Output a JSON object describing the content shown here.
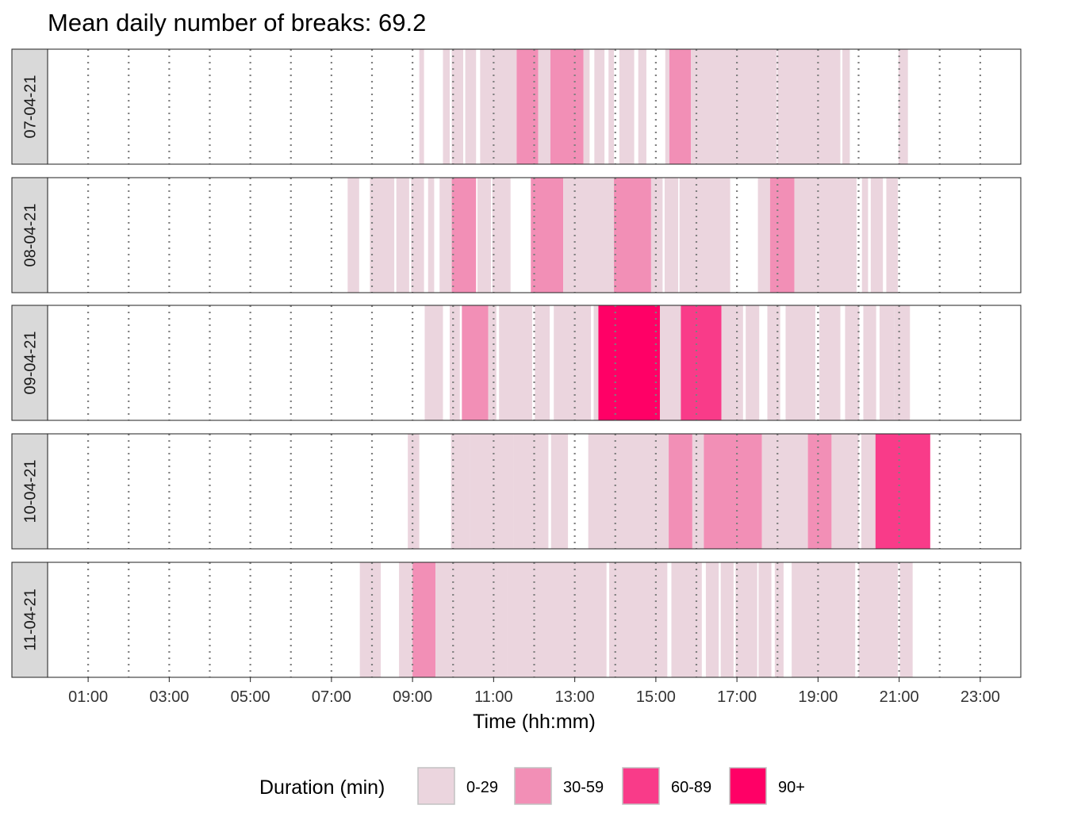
{
  "chart_data": {
    "type": "timeline",
    "title": "Mean daily number of breaks: 69.2",
    "xlabel": "Time (hh:mm)",
    "xlim_hours": [
      0,
      24
    ],
    "x_ticks": [
      "01:00",
      "03:00",
      "05:00",
      "07:00",
      "09:00",
      "11:00",
      "13:00",
      "15:00",
      "17:00",
      "19:00",
      "21:00",
      "23:00"
    ],
    "x_tick_hours": [
      1,
      3,
      5,
      7,
      9,
      11,
      13,
      15,
      17,
      19,
      21,
      23
    ],
    "gridlines_dotted_hours": [
      1,
      2,
      3,
      4,
      5,
      6,
      7,
      8,
      9,
      10,
      11,
      12,
      13,
      14,
      15,
      16,
      17,
      18,
      19,
      20,
      21,
      22,
      23
    ],
    "legend": {
      "title": "Duration (min)",
      "placement": "bottom",
      "categories": [
        {
          "label": "0-29",
          "color": "#ebd5de"
        },
        {
          "label": "30-59",
          "color": "#f28fb6"
        },
        {
          "label": "60-89",
          "color": "#f93b89"
        },
        {
          "label": "90+",
          "color": "#ff0066"
        }
      ]
    },
    "panels": [
      {
        "label": "07-04-21",
        "breaks": [
          {
            "start": "09:10",
            "end": "09:17",
            "category": "0-29"
          },
          {
            "start": "09:45",
            "end": "09:55",
            "category": "0-29"
          },
          {
            "start": "09:58",
            "end": "10:15",
            "category": "0-29"
          },
          {
            "start": "10:18",
            "end": "10:34",
            "category": "0-29"
          },
          {
            "start": "10:40",
            "end": "11:34",
            "category": "0-29"
          },
          {
            "start": "11:34",
            "end": "12:06",
            "category": "30-59"
          },
          {
            "start": "12:06",
            "end": "12:24",
            "category": "0-29"
          },
          {
            "start": "12:24",
            "end": "13:13",
            "category": "30-59"
          },
          {
            "start": "13:13",
            "end": "13:22",
            "category": "0-29"
          },
          {
            "start": "13:29",
            "end": "13:44",
            "category": "0-29"
          },
          {
            "start": "13:50",
            "end": "13:58",
            "category": "0-29"
          },
          {
            "start": "14:06",
            "end": "14:28",
            "category": "0-29"
          },
          {
            "start": "14:34",
            "end": "14:46",
            "category": "0-29"
          },
          {
            "start": "15:14",
            "end": "15:20",
            "category": "0-29"
          },
          {
            "start": "15:20",
            "end": "15:52",
            "category": "30-59"
          },
          {
            "start": "15:52",
            "end": "17:59",
            "category": "0-29"
          },
          {
            "start": "18:00",
            "end": "19:33",
            "category": "0-29"
          },
          {
            "start": "19:36",
            "end": "19:47",
            "category": "0-29"
          },
          {
            "start": "20:59",
            "end": "21:13",
            "category": "0-29"
          }
        ]
      },
      {
        "label": "08-04-21",
        "breaks": [
          {
            "start": "07:24",
            "end": "07:41",
            "category": "0-29"
          },
          {
            "start": "07:57",
            "end": "08:33",
            "category": "0-29"
          },
          {
            "start": "08:36",
            "end": "08:55",
            "category": "0-29"
          },
          {
            "start": "08:58",
            "end": "09:17",
            "category": "0-29"
          },
          {
            "start": "09:23",
            "end": "09:32",
            "category": "0-29"
          },
          {
            "start": "09:40",
            "end": "09:58",
            "category": "0-29"
          },
          {
            "start": "09:58",
            "end": "10:34",
            "category": "30-59"
          },
          {
            "start": "10:36",
            "end": "10:56",
            "category": "0-29"
          },
          {
            "start": "10:58",
            "end": "11:25",
            "category": "0-29"
          },
          {
            "start": "11:55",
            "end": "12:43",
            "category": "30-59"
          },
          {
            "start": "12:43",
            "end": "13:58",
            "category": "0-29"
          },
          {
            "start": "13:58",
            "end": "14:53",
            "category": "30-59"
          },
          {
            "start": "14:53",
            "end": "15:10",
            "category": "0-29"
          },
          {
            "start": "15:13",
            "end": "15:33",
            "category": "0-29"
          },
          {
            "start": "15:35",
            "end": "16:50",
            "category": "0-29"
          },
          {
            "start": "17:31",
            "end": "17:49",
            "category": "0-29"
          },
          {
            "start": "17:49",
            "end": "18:25",
            "category": "30-59"
          },
          {
            "start": "18:25",
            "end": "19:57",
            "category": "0-29"
          },
          {
            "start": "20:05",
            "end": "20:14",
            "category": "0-29"
          },
          {
            "start": "20:18",
            "end": "20:36",
            "category": "0-29"
          },
          {
            "start": "20:41",
            "end": "20:58",
            "category": "0-29"
          }
        ]
      },
      {
        "label": "09-04-21",
        "breaks": [
          {
            "start": "09:18",
            "end": "09:45",
            "category": "0-29"
          },
          {
            "start": "09:55",
            "end": "10:10",
            "category": "0-29"
          },
          {
            "start": "10:13",
            "end": "10:52",
            "category": "30-59"
          },
          {
            "start": "10:52",
            "end": "11:04",
            "category": "0-29"
          },
          {
            "start": "11:08",
            "end": "11:57",
            "category": "0-29"
          },
          {
            "start": "12:01",
            "end": "12:23",
            "category": "0-29"
          },
          {
            "start": "12:29",
            "end": "13:24",
            "category": "0-29"
          },
          {
            "start": "13:28",
            "end": "13:35",
            "category": "0-29"
          },
          {
            "start": "13:35",
            "end": "15:06",
            "category": "90+"
          },
          {
            "start": "15:06",
            "end": "15:37",
            "category": "0-29"
          },
          {
            "start": "15:37",
            "end": "16:37",
            "category": "60-89"
          },
          {
            "start": "16:37",
            "end": "17:09",
            "category": "0-29"
          },
          {
            "start": "17:13",
            "end": "17:33",
            "category": "0-29"
          },
          {
            "start": "17:45",
            "end": "18:04",
            "category": "0-29"
          },
          {
            "start": "18:12",
            "end": "18:56",
            "category": "0-29"
          },
          {
            "start": "19:02",
            "end": "19:33",
            "category": "0-29"
          },
          {
            "start": "19:40",
            "end": "20:01",
            "category": "0-29"
          },
          {
            "start": "20:07",
            "end": "20:26",
            "category": "0-29"
          },
          {
            "start": "20:31",
            "end": "20:53",
            "category": "0-29"
          },
          {
            "start": "20:53",
            "end": "21:16",
            "category": "0-29"
          }
        ]
      },
      {
        "label": "10-04-21",
        "breaks": [
          {
            "start": "08:53",
            "end": "09:10",
            "category": "0-29"
          },
          {
            "start": "09:57",
            "end": "10:25",
            "category": "0-29"
          },
          {
            "start": "10:25",
            "end": "11:30",
            "category": "0-29"
          },
          {
            "start": "11:30",
            "end": "12:21",
            "category": "0-29"
          },
          {
            "start": "12:25",
            "end": "12:50",
            "category": "0-29"
          },
          {
            "start": "13:20",
            "end": "15:19",
            "category": "0-29"
          },
          {
            "start": "15:19",
            "end": "15:54",
            "category": "30-59"
          },
          {
            "start": "15:54",
            "end": "16:11",
            "category": "0-29"
          },
          {
            "start": "16:11",
            "end": "17:37",
            "category": "30-59"
          },
          {
            "start": "17:37",
            "end": "18:45",
            "category": "0-29"
          },
          {
            "start": "18:45",
            "end": "19:20",
            "category": "30-59"
          },
          {
            "start": "19:20",
            "end": "20:00",
            "category": "0-29"
          },
          {
            "start": "20:04",
            "end": "20:25",
            "category": "0-29"
          },
          {
            "start": "20:25",
            "end": "21:46",
            "category": "60-89"
          }
        ]
      },
      {
        "label": "11-04-21",
        "breaks": [
          {
            "start": "07:42",
            "end": "08:13",
            "category": "0-29"
          },
          {
            "start": "08:40",
            "end": "09:00",
            "category": "0-29"
          },
          {
            "start": "09:00",
            "end": "09:34",
            "category": "30-59"
          },
          {
            "start": "09:34",
            "end": "11:20",
            "category": "0-29"
          },
          {
            "start": "11:20",
            "end": "13:47",
            "category": "0-29"
          },
          {
            "start": "13:51",
            "end": "15:17",
            "category": "0-29"
          },
          {
            "start": "15:23",
            "end": "16:08",
            "category": "0-29"
          },
          {
            "start": "16:14",
            "end": "16:33",
            "category": "0-29"
          },
          {
            "start": "16:36",
            "end": "16:55",
            "category": "0-29"
          },
          {
            "start": "16:58",
            "end": "17:30",
            "category": "0-29"
          },
          {
            "start": "17:32",
            "end": "17:51",
            "category": "0-29"
          },
          {
            "start": "17:56",
            "end": "18:09",
            "category": "0-29"
          },
          {
            "start": "18:21",
            "end": "19:55",
            "category": "0-29"
          },
          {
            "start": "20:00",
            "end": "20:58",
            "category": "0-29"
          },
          {
            "start": "21:01",
            "end": "21:20",
            "category": "0-29"
          }
        ]
      }
    ]
  }
}
